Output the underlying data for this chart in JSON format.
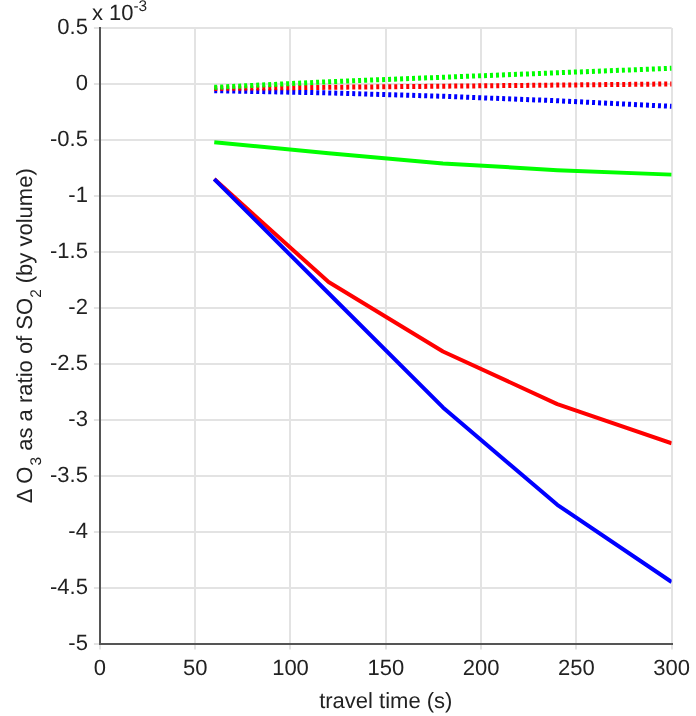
{
  "chart_data": {
    "type": "line",
    "xlabel": "travel time (s)",
    "ylabel": "Δ O$_{3}$ as a ratio of SO$_{2}$ (by volume)",
    "annotations": [
      "x 10$^{-3}$"
    ],
    "x": [
      60,
      120,
      180,
      240,
      300
    ],
    "series": [
      {
        "color": "#0000ff",
        "line_style": "solid",
        "values": [
          -0.85,
          -1.87,
          -2.89,
          -3.76,
          -4.45
        ]
      },
      {
        "color": "#ff0000",
        "line_style": "solid",
        "values": [
          -0.85,
          -1.77,
          -2.39,
          -2.86,
          -3.21
        ]
      },
      {
        "color": "#00ff00",
        "line_style": "solid",
        "values": [
          -0.52,
          -0.62,
          -0.71,
          -0.77,
          -0.81
        ]
      },
      {
        "color": "#00ff00",
        "line_style": "dotted",
        "values": [
          -0.03,
          0.02,
          0.06,
          0.1,
          0.14
        ]
      },
      {
        "color": "#ff0000",
        "line_style": "dotted",
        "values": [
          -0.04,
          -0.03,
          -0.02,
          -0.01,
          0
        ]
      },
      {
        "color": "#0000ff",
        "line_style": "dotted",
        "values": [
          -0.06,
          -0.08,
          -0.11,
          -0.15,
          -0.2
        ]
      }
    ],
    "xlim": [
      0,
      300
    ],
    "xticks": [
      0,
      50,
      100,
      150,
      200,
      250,
      300
    ],
    "ylim": [
      -5,
      0.5
    ],
    "yticks": [
      -5,
      -4.5,
      -4,
      -3.5,
      -3,
      -2.5,
      -2,
      -1.5,
      -1,
      -0.5,
      0,
      0.5
    ],
    "grid": true,
    "legend": false,
    "marker": "none"
  }
}
